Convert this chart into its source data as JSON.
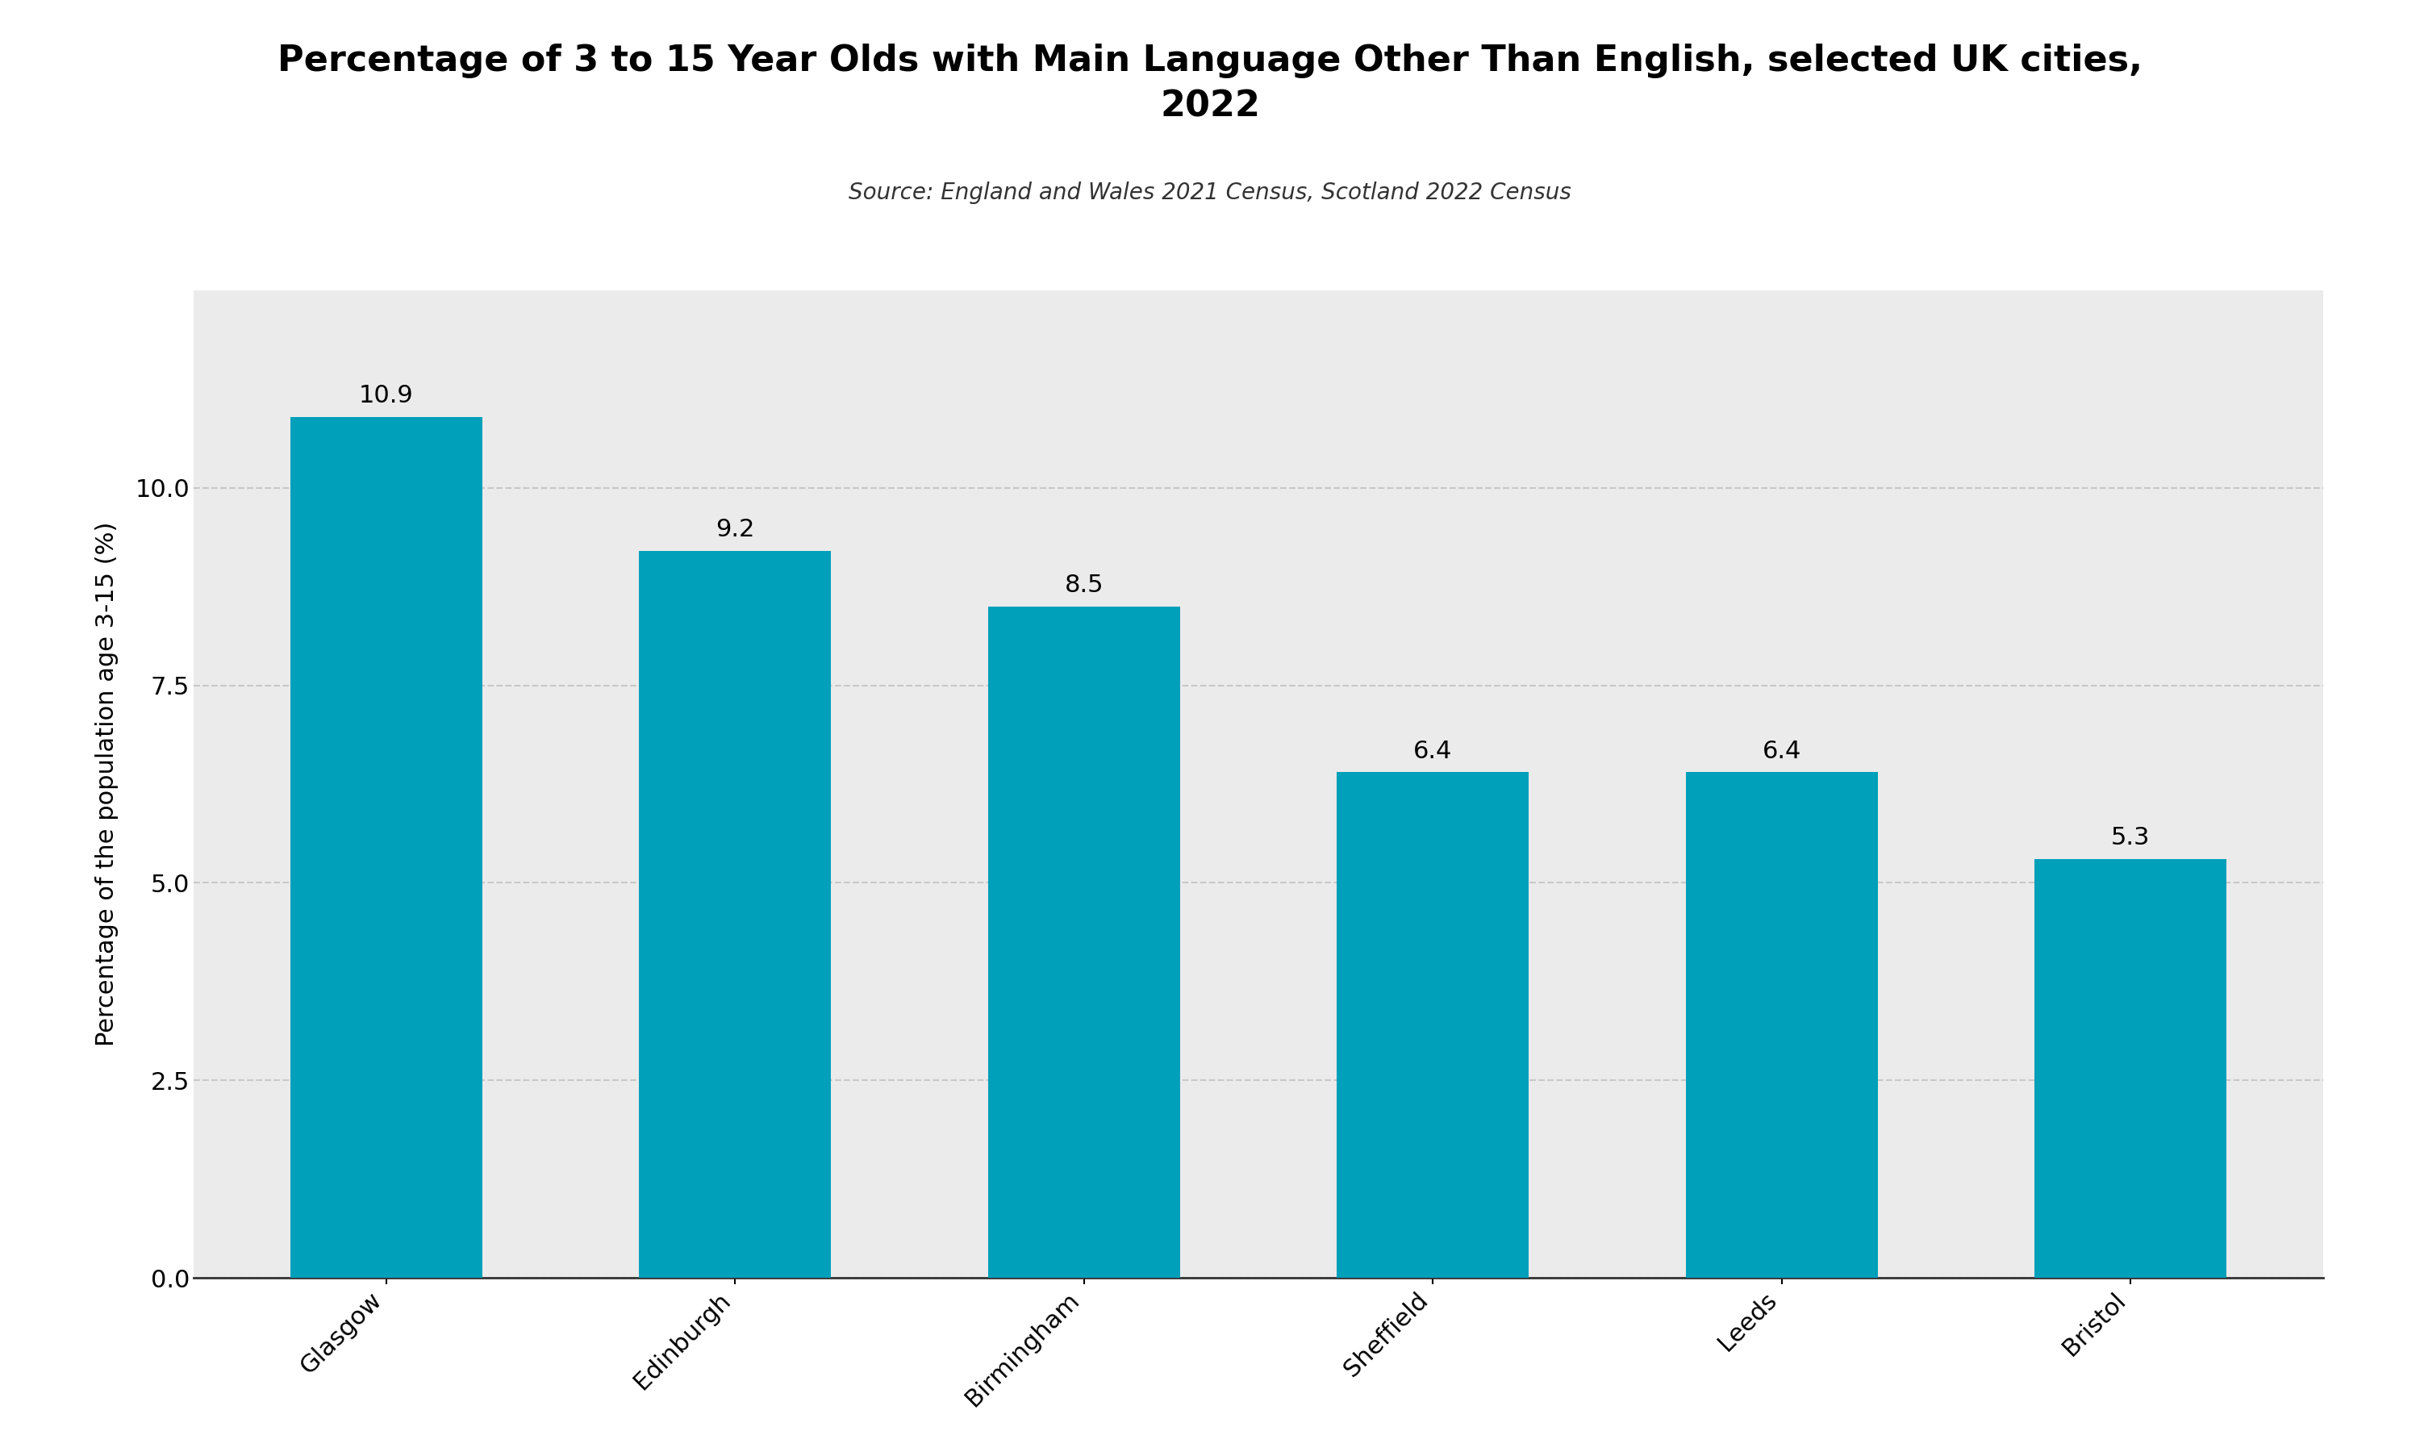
{
  "title": "Percentage of 3 to 15 Year Olds with Main Language Other Than English, selected UK cities,\n2022",
  "subtitle": "Source: England and Wales 2021 Census, Scotland 2022 Census",
  "categories": [
    "Glasgow",
    "Edinburgh",
    "Birmingham",
    "Sheffield",
    "Leeds",
    "Bristol"
  ],
  "values": [
    10.9,
    9.2,
    8.5,
    6.4,
    6.4,
    5.3
  ],
  "bar_color": "#009fba",
  "ylabel": "Percentage of the population age 3-15 (%)",
  "ylim": [
    0,
    12.5
  ],
  "yticks": [
    0.0,
    2.5,
    5.0,
    7.5,
    10.0
  ],
  "title_fontsize": 32,
  "subtitle_fontsize": 20,
  "ylabel_fontsize": 22,
  "tick_fontsize": 22,
  "bar_label_fontsize": 22,
  "plot_bg_color": "#ebebeb",
  "fig_bg_color": "#ffffff",
  "grid_color": "#c8c8c8",
  "bar_width": 0.55
}
